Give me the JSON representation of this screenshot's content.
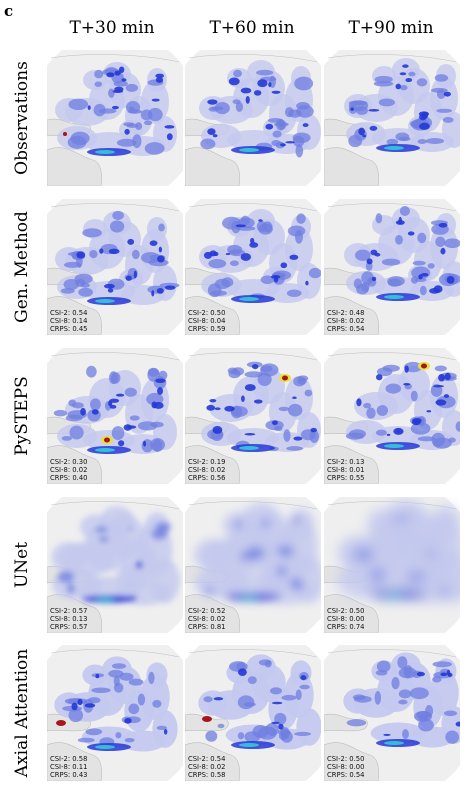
{
  "panel_letter": "c",
  "columns": [
    "T+30 min",
    "T+60 min",
    "T+90 min"
  ],
  "rows": [
    {
      "label": "Observations",
      "cells": [
        null,
        null,
        null
      ]
    },
    {
      "label": "Gen. Method",
      "cells": [
        {
          "csi2": "CSI-2: 0.54",
          "csi8": "CSI-8: 0.14",
          "crps": "CRPS: 0.45"
        },
        {
          "csi2": "CSI-2: 0.50",
          "csi8": "CSI-8: 0.04",
          "crps": "CRPS: 0.59"
        },
        {
          "csi2": "CSI-2: 0.48",
          "csi8": "CSI-8: 0.02",
          "crps": "CRPS: 0.54"
        }
      ]
    },
    {
      "label": "PySTEPS",
      "cells": [
        {
          "csi2": "CSI-2: 0.30",
          "csi8": "CSI-8: 0.02",
          "crps": "CRPS: 0.40"
        },
        {
          "csi2": "CSI-2: 0.19",
          "csi8": "CSI-8: 0.02",
          "crps": "CRPS: 0.56"
        },
        {
          "csi2": "CSI-2: 0.13",
          "csi8": "CSI-8: 0.01",
          "crps": "CRPS: 0.55"
        }
      ]
    },
    {
      "label": "UNet",
      "cells": [
        {
          "csi2": "CSI-2: 0.57",
          "csi8": "CSI-8: 0.13",
          "crps": "CRPS: 0.57"
        },
        {
          "csi2": "CSI-2: 0.52",
          "csi8": "CSI-8: 0.02",
          "crps": "CRPS: 0.81"
        },
        {
          "csi2": "CSI-2: 0.50",
          "csi8": "CSI-8: 0.00",
          "crps": "CRPS: 0.74"
        }
      ]
    },
    {
      "label": "Axial Attention",
      "cells": [
        {
          "csi2": "CSI-2: 0.58",
          "csi8": "CSI-8: 0.11",
          "crps": "CRPS: 0.43"
        },
        {
          "csi2": "CSI-2: 0.54",
          "csi8": "CSI-8: 0.02",
          "crps": "CRPS: 0.58"
        },
        {
          "csi2": "CSI-2: 0.50",
          "csi8": "CSI-8: 0.00",
          "crps": "CRPS: 0.54"
        }
      ]
    }
  ],
  "colors": {
    "land": "#e3e3e3",
    "coast": "#bdbdbd",
    "precip_light": "#c3c8ee",
    "precip_mid": "#6f7de0",
    "precip_heavy": "#2438d6",
    "precip_core": "#35c9d8",
    "precip_extreme": "#a8141c",
    "precip_yellow": "#e8e03a"
  }
}
